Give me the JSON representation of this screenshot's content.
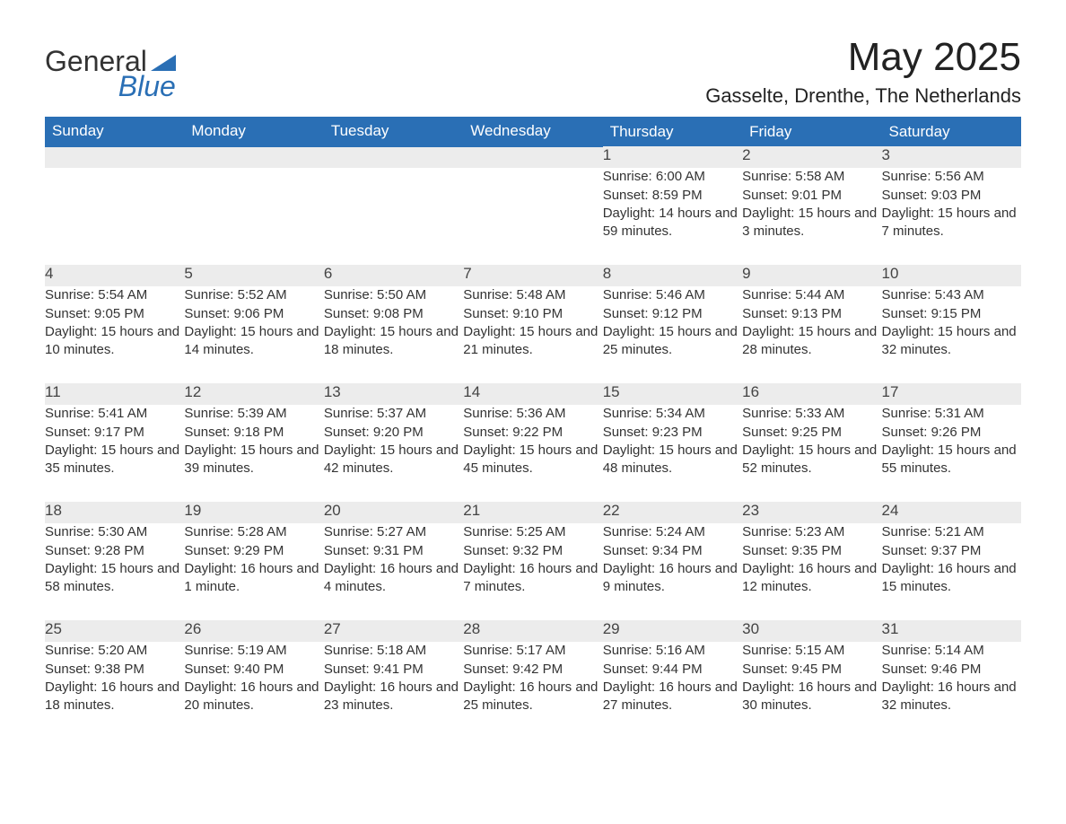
{
  "logo": {
    "word1": "General",
    "word2": "Blue"
  },
  "title": "May 2025",
  "location": "Gasselte, Drenthe, The Netherlands",
  "colors": {
    "header_bg": "#2a6fb5",
    "header_text": "#ffffff",
    "daynum_bg": "#ececec",
    "rule": "#2a6fb5",
    "body_text": "#333333",
    "page_bg": "#ffffff"
  },
  "weekdays": [
    "Sunday",
    "Monday",
    "Tuesday",
    "Wednesday",
    "Thursday",
    "Friday",
    "Saturday"
  ],
  "weeks": [
    [
      null,
      null,
      null,
      null,
      {
        "day": "1",
        "sunrise": "Sunrise: 6:00 AM",
        "sunset": "Sunset: 8:59 PM",
        "daylight": "Daylight: 14 hours and 59 minutes."
      },
      {
        "day": "2",
        "sunrise": "Sunrise: 5:58 AM",
        "sunset": "Sunset: 9:01 PM",
        "daylight": "Daylight: 15 hours and 3 minutes."
      },
      {
        "day": "3",
        "sunrise": "Sunrise: 5:56 AM",
        "sunset": "Sunset: 9:03 PM",
        "daylight": "Daylight: 15 hours and 7 minutes."
      }
    ],
    [
      {
        "day": "4",
        "sunrise": "Sunrise: 5:54 AM",
        "sunset": "Sunset: 9:05 PM",
        "daylight": "Daylight: 15 hours and 10 minutes."
      },
      {
        "day": "5",
        "sunrise": "Sunrise: 5:52 AM",
        "sunset": "Sunset: 9:06 PM",
        "daylight": "Daylight: 15 hours and 14 minutes."
      },
      {
        "day": "6",
        "sunrise": "Sunrise: 5:50 AM",
        "sunset": "Sunset: 9:08 PM",
        "daylight": "Daylight: 15 hours and 18 minutes."
      },
      {
        "day": "7",
        "sunrise": "Sunrise: 5:48 AM",
        "sunset": "Sunset: 9:10 PM",
        "daylight": "Daylight: 15 hours and 21 minutes."
      },
      {
        "day": "8",
        "sunrise": "Sunrise: 5:46 AM",
        "sunset": "Sunset: 9:12 PM",
        "daylight": "Daylight: 15 hours and 25 minutes."
      },
      {
        "day": "9",
        "sunrise": "Sunrise: 5:44 AM",
        "sunset": "Sunset: 9:13 PM",
        "daylight": "Daylight: 15 hours and 28 minutes."
      },
      {
        "day": "10",
        "sunrise": "Sunrise: 5:43 AM",
        "sunset": "Sunset: 9:15 PM",
        "daylight": "Daylight: 15 hours and 32 minutes."
      }
    ],
    [
      {
        "day": "11",
        "sunrise": "Sunrise: 5:41 AM",
        "sunset": "Sunset: 9:17 PM",
        "daylight": "Daylight: 15 hours and 35 minutes."
      },
      {
        "day": "12",
        "sunrise": "Sunrise: 5:39 AM",
        "sunset": "Sunset: 9:18 PM",
        "daylight": "Daylight: 15 hours and 39 minutes."
      },
      {
        "day": "13",
        "sunrise": "Sunrise: 5:37 AM",
        "sunset": "Sunset: 9:20 PM",
        "daylight": "Daylight: 15 hours and 42 minutes."
      },
      {
        "day": "14",
        "sunrise": "Sunrise: 5:36 AM",
        "sunset": "Sunset: 9:22 PM",
        "daylight": "Daylight: 15 hours and 45 minutes."
      },
      {
        "day": "15",
        "sunrise": "Sunrise: 5:34 AM",
        "sunset": "Sunset: 9:23 PM",
        "daylight": "Daylight: 15 hours and 48 minutes."
      },
      {
        "day": "16",
        "sunrise": "Sunrise: 5:33 AM",
        "sunset": "Sunset: 9:25 PM",
        "daylight": "Daylight: 15 hours and 52 minutes."
      },
      {
        "day": "17",
        "sunrise": "Sunrise: 5:31 AM",
        "sunset": "Sunset: 9:26 PM",
        "daylight": "Daylight: 15 hours and 55 minutes."
      }
    ],
    [
      {
        "day": "18",
        "sunrise": "Sunrise: 5:30 AM",
        "sunset": "Sunset: 9:28 PM",
        "daylight": "Daylight: 15 hours and 58 minutes."
      },
      {
        "day": "19",
        "sunrise": "Sunrise: 5:28 AM",
        "sunset": "Sunset: 9:29 PM",
        "daylight": "Daylight: 16 hours and 1 minute."
      },
      {
        "day": "20",
        "sunrise": "Sunrise: 5:27 AM",
        "sunset": "Sunset: 9:31 PM",
        "daylight": "Daylight: 16 hours and 4 minutes."
      },
      {
        "day": "21",
        "sunrise": "Sunrise: 5:25 AM",
        "sunset": "Sunset: 9:32 PM",
        "daylight": "Daylight: 16 hours and 7 minutes."
      },
      {
        "day": "22",
        "sunrise": "Sunrise: 5:24 AM",
        "sunset": "Sunset: 9:34 PM",
        "daylight": "Daylight: 16 hours and 9 minutes."
      },
      {
        "day": "23",
        "sunrise": "Sunrise: 5:23 AM",
        "sunset": "Sunset: 9:35 PM",
        "daylight": "Daylight: 16 hours and 12 minutes."
      },
      {
        "day": "24",
        "sunrise": "Sunrise: 5:21 AM",
        "sunset": "Sunset: 9:37 PM",
        "daylight": "Daylight: 16 hours and 15 minutes."
      }
    ],
    [
      {
        "day": "25",
        "sunrise": "Sunrise: 5:20 AM",
        "sunset": "Sunset: 9:38 PM",
        "daylight": "Daylight: 16 hours and 18 minutes."
      },
      {
        "day": "26",
        "sunrise": "Sunrise: 5:19 AM",
        "sunset": "Sunset: 9:40 PM",
        "daylight": "Daylight: 16 hours and 20 minutes."
      },
      {
        "day": "27",
        "sunrise": "Sunrise: 5:18 AM",
        "sunset": "Sunset: 9:41 PM",
        "daylight": "Daylight: 16 hours and 23 minutes."
      },
      {
        "day": "28",
        "sunrise": "Sunrise: 5:17 AM",
        "sunset": "Sunset: 9:42 PM",
        "daylight": "Daylight: 16 hours and 25 minutes."
      },
      {
        "day": "29",
        "sunrise": "Sunrise: 5:16 AM",
        "sunset": "Sunset: 9:44 PM",
        "daylight": "Daylight: 16 hours and 27 minutes."
      },
      {
        "day": "30",
        "sunrise": "Sunrise: 5:15 AM",
        "sunset": "Sunset: 9:45 PM",
        "daylight": "Daylight: 16 hours and 30 minutes."
      },
      {
        "day": "31",
        "sunrise": "Sunrise: 5:14 AM",
        "sunset": "Sunset: 9:46 PM",
        "daylight": "Daylight: 16 hours and 32 minutes."
      }
    ]
  ]
}
